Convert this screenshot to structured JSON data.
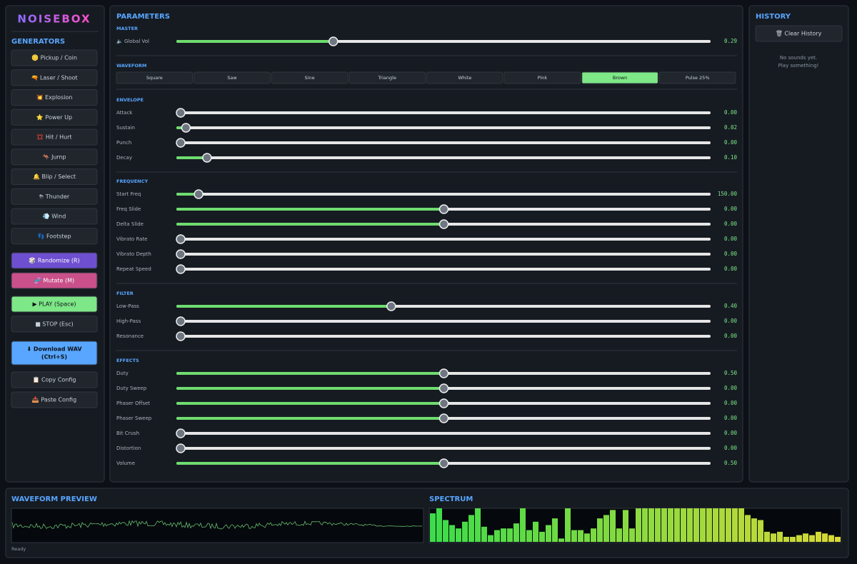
{
  "sidebar": {
    "title": "NOISEBOX",
    "heading": "GENERATORS",
    "generators": [
      "🪙 Pickup / Coin",
      "🔫 Laser / Shoot",
      "💥 Explosion",
      "⭐ Power Up",
      "💢 Hit / Hurt",
      "🦘 Jump",
      "🔔 Blip / Select",
      "⛈ Thunder",
      "💨 Wind",
      "👣 Footstep"
    ],
    "actions": [
      {
        "label": "🎲 Randomize (R)"
      },
      {
        "label": "🧬 Mutate (M)"
      },
      {
        "label": "▶ PLAY (Space)"
      },
      {
        "label": "■ STOP (Esc)"
      },
      {
        "label_lines": [
          "⬇ Download WAV",
          "(Ctrl+S)"
        ]
      },
      {
        "label": "📋 Copy Config"
      },
      {
        "label": "📥 Paste Config"
      }
    ]
  },
  "parameters": {
    "title": "PARAMETERS",
    "sections": [
      {
        "label": "MASTER",
        "sliders": [
          {
            "label": "🔈 Global Vol",
            "value": 0.29,
            "value_label": "0.29",
            "min": 0,
            "max": 1
          }
        ]
      },
      {
        "label": "WAVEFORM",
        "options": [
          "Square",
          "Saw",
          "Sine",
          "Triangle",
          "White",
          "Pink",
          "Brown",
          "Pulse 25%"
        ],
        "selected": 6
      },
      {
        "label": "ENVELOPE",
        "sliders": [
          {
            "label": "Attack",
            "value": 0,
            "value_label": "0.00",
            "min": 0,
            "max": 2
          },
          {
            "label": "Sustain",
            "value": 0.02,
            "value_label": "0.02",
            "min": 0,
            "max": 2
          },
          {
            "label": "Punch",
            "value": 0,
            "value_label": "0.00",
            "min": 0,
            "max": 1
          },
          {
            "label": "Decay",
            "value": 0.1,
            "value_label": "0.10",
            "min": 0,
            "max": 2
          }
        ]
      },
      {
        "label": "FREQUENCY",
        "sliders": [
          {
            "label": "Start Freq",
            "value": 150,
            "value_label": "150.00",
            "min": 0,
            "max": 4400
          },
          {
            "label": "Freq Slide",
            "value": 0,
            "value_label": "0.00",
            "min": -1,
            "max": 1
          },
          {
            "label": "Delta Slide",
            "value": 0,
            "value_label": "0.00",
            "min": -1,
            "max": 1
          },
          {
            "label": "Vibrato Rate",
            "value": 0,
            "value_label": "0.00",
            "min": 0,
            "max": 1
          },
          {
            "label": "Vibrato Depth",
            "value": 0,
            "value_label": "0.00",
            "min": 0,
            "max": 1
          },
          {
            "label": "Repeat Speed",
            "value": 0,
            "value_label": "0.00",
            "min": 0,
            "max": 1
          }
        ]
      },
      {
        "label": "FILTER",
        "sliders": [
          {
            "label": "Low-Pass",
            "value": 0.4,
            "value_label": "0.40",
            "min": 0,
            "max": 1
          },
          {
            "label": "High-Pass",
            "value": 0,
            "value_label": "0.00",
            "min": 0,
            "max": 1
          },
          {
            "label": "Resonance",
            "value": 0,
            "value_label": "0.00",
            "min": 0,
            "max": 1
          }
        ]
      },
      {
        "label": "EFFECTS",
        "sliders": [
          {
            "label": "Duty",
            "value": 0.5,
            "value_label": "0.50",
            "min": 0,
            "max": 1
          },
          {
            "label": "Duty Sweep",
            "value": 0,
            "value_label": "0.00",
            "min": -1,
            "max": 1
          },
          {
            "label": "Phaser Offset",
            "value": 0,
            "value_label": "0.00",
            "min": -1,
            "max": 1
          },
          {
            "label": "Phaser Sweep",
            "value": 0,
            "value_label": "0.00",
            "min": -1,
            "max": 1
          },
          {
            "label": "Bit Crush",
            "value": 0,
            "value_label": "0.00",
            "min": 0,
            "max": 1
          },
          {
            "label": "Distortion",
            "value": 0,
            "value_label": "0.00",
            "min": 0,
            "max": 1
          },
          {
            "label": "Volume",
            "value": 0.5,
            "value_label": "0.50",
            "min": 0,
            "max": 1
          }
        ]
      }
    ]
  },
  "history": {
    "title": "HISTORY",
    "button": "🗑 Clear History",
    "empty_lines": [
      "No sounds yet.",
      "Play something!"
    ]
  },
  "preview": {
    "title": "WAVEFORM PREVIEW",
    "status": "Ready"
  },
  "spectrum": {
    "title": "SPECTRUM",
    "ylim": [
      0,
      1
    ],
    "values": [
      0.85,
      1,
      0.65,
      0.5,
      0.4,
      0.6,
      0.8,
      1,
      0.45,
      0.2,
      0.35,
      0.4,
      0.4,
      0.55,
      1,
      0.35,
      0.6,
      0.3,
      0.5,
      0.7,
      0.1,
      1,
      0.35,
      0.35,
      0.25,
      0.4,
      0.7,
      0.8,
      0.95,
      0.4,
      0.95,
      0.4,
      1,
      1,
      1,
      1,
      1,
      1,
      1,
      1,
      1,
      1,
      1,
      1,
      1,
      1,
      1,
      1,
      1,
      0.8,
      0.7,
      0.65,
      0.3,
      0.25,
      0.3,
      0.15,
      0.15,
      0.2,
      0.25,
      0.2,
      0.3,
      0.25,
      0.2,
      0.15
    ]
  }
}
